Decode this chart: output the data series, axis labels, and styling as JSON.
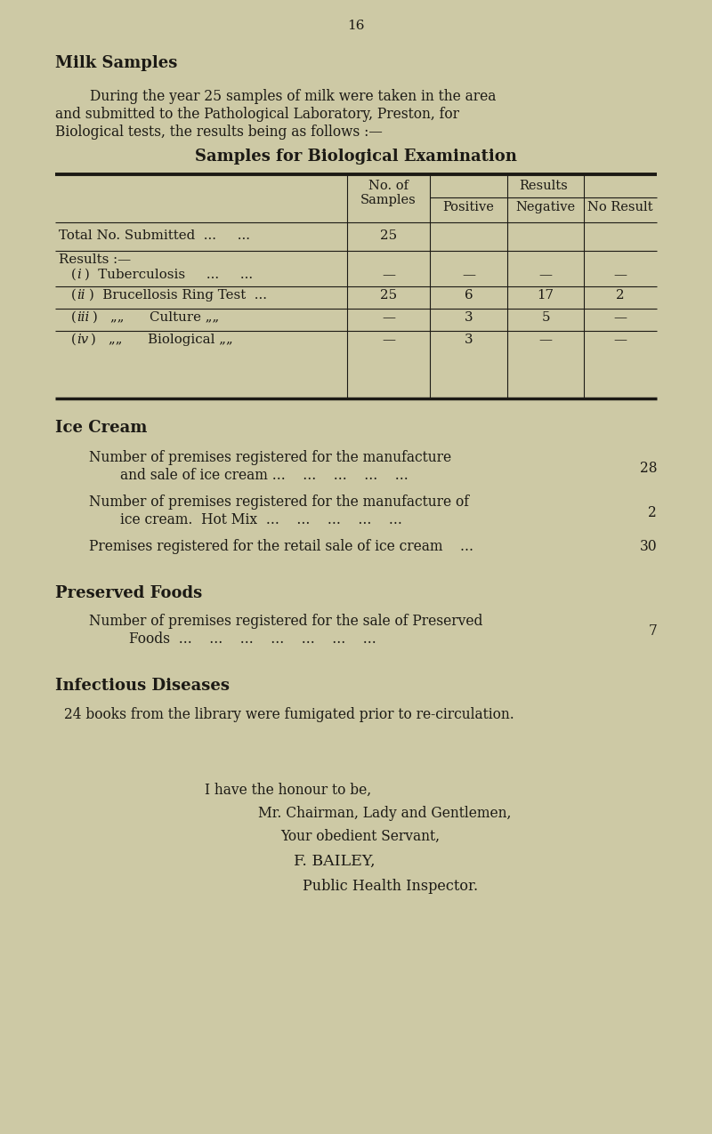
{
  "bg_color": "#cdc9a5",
  "page_number": "16",
  "title_milk": "Milk Samples",
  "para1": "        During the year 25 samples of milk were taken in the area",
  "para2": "and submitted to the Pathological Laboratory, Preston, for",
  "para3": "Biological tests, the results being as follows :—",
  "table_title": "Samples for Biological Examination",
  "title_ice": "Ice Cream",
  "title_pf": "Preserved Foods",
  "title_id": "Infectious Diseases",
  "id_line": "24 books from the library were fumigated prior to re-circulation.",
  "closing": [
    "I have the honour to be,",
    "Mr. Chairman, Lady and Gentlemen,",
    "Your obedient Servant,",
    "F. BAILEY,",
    "Public Health Inspector."
  ],
  "font_color": "#1c1a15",
  "line_color": "#1c1a15",
  "lmargin": 62,
  "rmargin": 738,
  "indent1": 100,
  "indent2": 115
}
